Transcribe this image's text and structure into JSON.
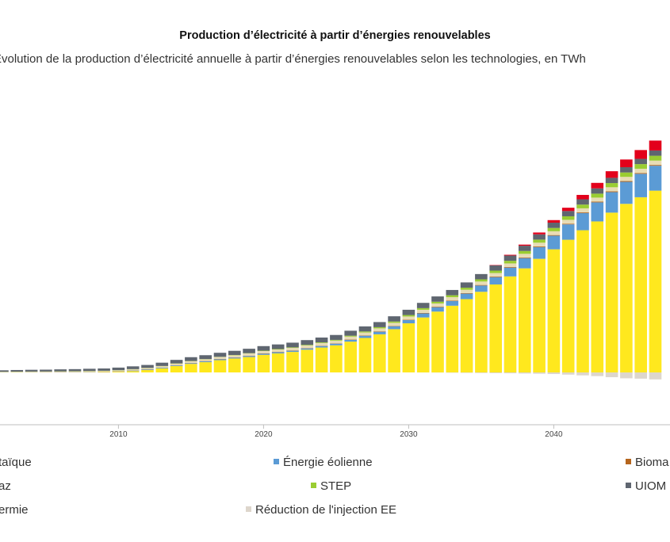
{
  "chart_data": {
    "type": "bar",
    "stacked": true,
    "title": "Production d’électricité à partir d’énergies renouvelables",
    "subtitle": "Évolution de la production d’électricité annuelle à partir d’énergies renouvelables selon les technologies, en TWh",
    "xlabel": "",
    "ylabel": "",
    "x_ticks": [
      2010,
      2020,
      2030,
      2040
    ],
    "x": [
      2002,
      2003,
      2004,
      2005,
      2006,
      2007,
      2008,
      2009,
      2010,
      2011,
      2012,
      2013,
      2014,
      2015,
      2016,
      2017,
      2018,
      2019,
      2020,
      2021,
      2022,
      2023,
      2024,
      2025,
      2026,
      2027,
      2028,
      2029,
      2030,
      2031,
      2032,
      2033,
      2034,
      2035,
      2036,
      2037,
      2038,
      2039,
      2040,
      2041,
      2042,
      2043,
      2044,
      2045,
      2046,
      2047
    ],
    "grid": false,
    "legend_position": "bottom",
    "series": [
      {
        "name": "photovoltaïque",
        "legend_label": "taïque",
        "color": "#ffe81e",
        "values": [
          0.0,
          0.01,
          0.01,
          0.01,
          0.01,
          0.02,
          0.03,
          0.05,
          0.1,
          0.18,
          0.32,
          0.55,
          0.87,
          1.17,
          1.4,
          1.67,
          1.9,
          2.1,
          2.4,
          2.6,
          2.8,
          3.1,
          3.4,
          3.7,
          4.2,
          4.7,
          5.2,
          5.9,
          6.7,
          7.5,
          8.3,
          9.1,
          10.0,
          11.0,
          12.0,
          13.1,
          14.2,
          15.5,
          16.8,
          18.1,
          19.4,
          20.6,
          21.8,
          23.0,
          23.9,
          24.8
        ]
      },
      {
        "name": "Énergie éolienne",
        "legend_label": "Énergie éolienne",
        "color": "#5b9bd5",
        "values": [
          0.0,
          0.0,
          0.01,
          0.01,
          0.02,
          0.02,
          0.02,
          0.02,
          0.04,
          0.07,
          0.08,
          0.09,
          0.09,
          0.1,
          0.11,
          0.13,
          0.12,
          0.14,
          0.15,
          0.15,
          0.16,
          0.18,
          0.2,
          0.22,
          0.25,
          0.3,
          0.35,
          0.4,
          0.45,
          0.55,
          0.6,
          0.65,
          0.75,
          0.85,
          1.0,
          1.2,
          1.4,
          1.6,
          1.85,
          2.1,
          2.35,
          2.6,
          2.8,
          3.0,
          3.2,
          3.4
        ]
      },
      {
        "name": "Biomasse",
        "legend_label": "Bioma",
        "color": "#b5651d",
        "values": [
          0.02,
          0.02,
          0.02,
          0.02,
          0.02,
          0.02,
          0.03,
          0.03,
          0.03,
          0.03,
          0.03,
          0.03,
          0.04,
          0.04,
          0.04,
          0.04,
          0.04,
          0.05,
          0.05,
          0.05,
          0.05,
          0.05,
          0.05,
          0.05,
          0.06,
          0.06,
          0.06,
          0.06,
          0.06,
          0.07,
          0.07,
          0.07,
          0.07,
          0.08,
          0.08,
          0.08,
          0.08,
          0.09,
          0.09,
          0.09,
          0.1,
          0.1,
          0.1,
          0.11,
          0.11,
          0.11
        ]
      },
      {
        "name": "Biogaz",
        "legend_label": "az",
        "color": "#e8dcb5",
        "values": [
          0.04,
          0.05,
          0.05,
          0.06,
          0.07,
          0.08,
          0.09,
          0.1,
          0.12,
          0.14,
          0.16,
          0.18,
          0.2,
          0.22,
          0.24,
          0.26,
          0.28,
          0.3,
          0.32,
          0.33,
          0.34,
          0.35,
          0.36,
          0.37,
          0.38,
          0.39,
          0.4,
          0.41,
          0.42,
          0.43,
          0.44,
          0.45,
          0.46,
          0.47,
          0.48,
          0.49,
          0.5,
          0.51,
          0.52,
          0.53,
          0.54,
          0.55,
          0.56,
          0.57,
          0.58,
          0.59
        ]
      },
      {
        "name": "STEP",
        "legend_label": "STEP",
        "color": "#9acd32",
        "values": [
          0.03,
          0.03,
          0.03,
          0.03,
          0.03,
          0.03,
          0.03,
          0.03,
          0.03,
          0.03,
          0.03,
          0.03,
          0.03,
          0.03,
          0.03,
          0.03,
          0.04,
          0.04,
          0.05,
          0.06,
          0.07,
          0.08,
          0.09,
          0.1,
          0.12,
          0.14,
          0.16,
          0.18,
          0.2,
          0.22,
          0.24,
          0.26,
          0.28,
          0.3,
          0.33,
          0.36,
          0.39,
          0.42,
          0.45,
          0.48,
          0.51,
          0.54,
          0.57,
          0.6,
          0.63,
          0.66
        ]
      },
      {
        "name": "UIOM",
        "legend_label": "UIOM",
        "color": "#5f6670",
        "values": [
          0.2,
          0.22,
          0.24,
          0.25,
          0.27,
          0.28,
          0.3,
          0.31,
          0.34,
          0.38,
          0.4,
          0.45,
          0.48,
          0.52,
          0.53,
          0.55,
          0.57,
          0.6,
          0.62,
          0.63,
          0.64,
          0.65,
          0.66,
          0.67,
          0.68,
          0.69,
          0.7,
          0.71,
          0.72,
          0.72,
          0.72,
          0.72,
          0.72,
          0.72,
          0.72,
          0.72,
          0.72,
          0.72,
          0.72,
          0.72,
          0.72,
          0.72,
          0.72,
          0.72,
          0.72,
          0.72
        ]
      },
      {
        "name": "Géothermie",
        "legend_label": "ermie",
        "color": "#e3001b",
        "values": [
          0.0,
          0.0,
          0.0,
          0.0,
          0.0,
          0.0,
          0.0,
          0.0,
          0.0,
          0.0,
          0.0,
          0.0,
          0.0,
          0.0,
          0.0,
          0.0,
          0.0,
          0.0,
          0.0,
          0.0,
          0.0,
          0.0,
          0.0,
          0.0,
          0.0,
          0.0,
          0.0,
          0.0,
          0.0,
          0.0,
          0.0,
          0.0,
          0.0,
          0.0,
          0.05,
          0.1,
          0.15,
          0.25,
          0.35,
          0.45,
          0.6,
          0.75,
          0.9,
          1.05,
          1.2,
          1.35
        ]
      },
      {
        "name": "Réduction de l'injection EE",
        "legend_label": "Réduction de l'injection EE",
        "color": "#ddd6cc",
        "values": [
          0.0,
          0.0,
          0.0,
          0.0,
          0.0,
          0.0,
          0.0,
          0.0,
          0.0,
          0.0,
          0.0,
          0.0,
          0.0,
          0.0,
          0.0,
          0.0,
          0.0,
          0.0,
          0.0,
          0.0,
          0.0,
          0.0,
          0.0,
          0.0,
          0.0,
          0.0,
          0.0,
          0.0,
          0.0,
          -0.01,
          -0.02,
          -0.04,
          -0.06,
          -0.08,
          -0.1,
          -0.12,
          -0.15,
          -0.18,
          -0.22,
          -0.3,
          -0.4,
          -0.5,
          -0.65,
          -0.8,
          -0.85,
          -0.95
        ]
      }
    ]
  }
}
